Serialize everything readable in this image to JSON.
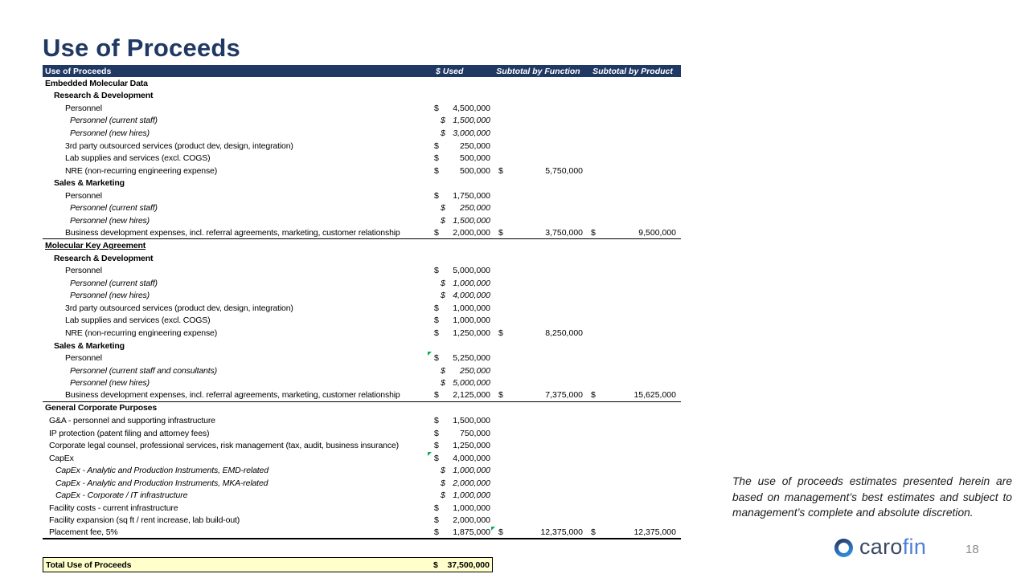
{
  "page": {
    "title": "Use of Proceeds",
    "page_number": "18"
  },
  "table": {
    "headers": {
      "label": "Use of Proceeds",
      "used": "$ Used",
      "function": "Subtotal by Function",
      "product": "Subtotal by Product"
    },
    "currency_symbol": "$",
    "rows": [
      {
        "label": "Embedded Molecular Data",
        "type": "section"
      },
      {
        "label": "Research & Development",
        "type": "subsection"
      },
      {
        "label": "Personnel",
        "type": "item",
        "used": "4,500,000"
      },
      {
        "label": "Personnel (current staff)",
        "type": "subitem",
        "used": "1,500,000"
      },
      {
        "label": "Personnel (new hires)",
        "type": "subitem",
        "used": "3,000,000"
      },
      {
        "label": "3rd party outsourced services (product dev, design, integration)",
        "type": "item",
        "used": "250,000"
      },
      {
        "label": "Lab supplies and services (excl. COGS)",
        "type": "item",
        "used": "500,000"
      },
      {
        "label": "NRE (non-recurring engineering expense)",
        "type": "item",
        "used": "500,000",
        "func": "5,750,000"
      },
      {
        "label": "Sales & Marketing",
        "type": "subsection"
      },
      {
        "label": "Personnel",
        "type": "item",
        "used": "1,750,000"
      },
      {
        "label": "Personnel (current staff)",
        "type": "subitem",
        "used": "250,000"
      },
      {
        "label": "Personnel (new hires)",
        "type": "subitem",
        "used": "1,500,000"
      },
      {
        "label": "Business development expenses, incl. referral agreements, marketing, customer relationship",
        "type": "item",
        "used": "2,000,000",
        "func": "3,750,000",
        "prod": "9,500,000",
        "border": "thin"
      },
      {
        "label": "Molecular Key Agreement",
        "type": "section",
        "underline": true
      },
      {
        "label": "Research & Development",
        "type": "subsection"
      },
      {
        "label": "Personnel",
        "type": "item",
        "used": "5,000,000"
      },
      {
        "label": "Personnel (current staff)",
        "type": "subitem",
        "used": "1,000,000"
      },
      {
        "label": "Personnel (new hires)",
        "type": "subitem",
        "used": "4,000,000"
      },
      {
        "label": "3rd party outsourced services (product dev, design, integration)",
        "type": "item",
        "used": "1,000,000"
      },
      {
        "label": "Lab supplies and services (excl. COGS)",
        "type": "item",
        "used": "1,000,000"
      },
      {
        "label": "NRE (non-recurring engineering expense)",
        "type": "item",
        "used": "1,250,000",
        "func": "8,250,000"
      },
      {
        "label": "Sales & Marketing",
        "type": "subsection"
      },
      {
        "label": "Personnel",
        "type": "item",
        "used": "5,250,000",
        "marker_used": true
      },
      {
        "label": "Personnel (current staff and consultants)",
        "type": "subitem",
        "used": "250,000"
      },
      {
        "label": "Personnel (new hires)",
        "type": "subitem",
        "used": "5,000,000"
      },
      {
        "label": "Business development expenses, incl. referral agreements, marketing, customer relationship",
        "type": "item",
        "used": "2,125,000",
        "func": "7,375,000",
        "prod": "15,625,000",
        "border": "thin"
      },
      {
        "label": "General Corporate Purposes",
        "type": "section"
      },
      {
        "label": "G&A - personnel and supporting infrastructure",
        "type": "gcp-item",
        "used": "1,500,000"
      },
      {
        "label": "IP protection (patent filing and attorney fees)",
        "type": "gcp-item",
        "used": "750,000"
      },
      {
        "label": "Corporate legal counsel, professional services, risk management (tax, audit, business insurance)",
        "type": "gcp-item",
        "used": "1,250,000"
      },
      {
        "label": "CapEx",
        "type": "gcp-item",
        "used": "4,000,000",
        "marker_used": true
      },
      {
        "label": "CapEx - Analytic and Production Instruments, EMD-related",
        "type": "gcp-subitem",
        "used": "1,000,000"
      },
      {
        "label": "CapEx - Analytic and Production Instruments, MKA-related",
        "type": "gcp-subitem",
        "used": "2,000,000"
      },
      {
        "label": "CapEx - Corporate / IT infrastructure",
        "type": "gcp-subitem",
        "used": "1,000,000"
      },
      {
        "label": "Facility costs - current infrastructure",
        "type": "gcp-item",
        "used": "1,000,000"
      },
      {
        "label": "Facility expansion (sq ft / rent increase, lab build-out)",
        "type": "gcp-item",
        "used": "2,000,000"
      },
      {
        "label": "Placement fee, 5%",
        "type": "gcp-item",
        "used": "1,875,000",
        "func": "12,375,000",
        "prod": "12,375,000",
        "marker_func": true,
        "border": "thick"
      }
    ],
    "total": {
      "label": "Total Use of Proceeds",
      "used": "37,500,000"
    }
  },
  "disclaimer": "The use of proceeds estimates presented herein are based on management’s best estimates and subject to management’s complete and absolute discretion.",
  "logo": {
    "caro": "caro",
    "fin": "fin"
  },
  "colors": {
    "navy": "#1F3864",
    "total_bg": "#FFFFCC",
    "marker_green": "#00B050",
    "logo_dark": "#3C4965",
    "logo_blue": "#4C80D8"
  }
}
